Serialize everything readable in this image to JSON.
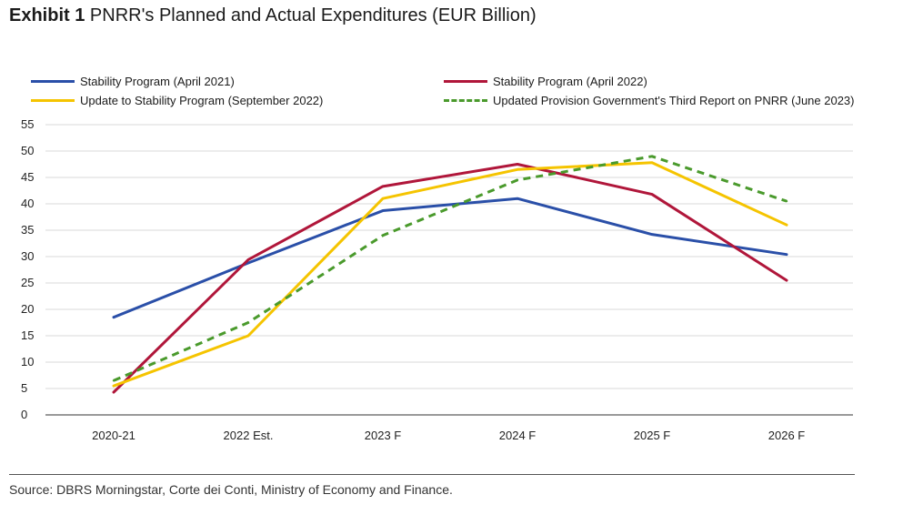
{
  "header": {
    "exhibit": "Exhibit 1",
    "title": "PNRR's Planned and Actual Expenditures (EUR Billion)"
  },
  "source": "Source: DBRS Morningstar, Corte dei Conti, Ministry of Economy and Finance.",
  "chart_data": {
    "type": "line",
    "title": "PNRR's Planned and Actual Expenditures (EUR Billion)",
    "xlabel": "",
    "ylabel": "",
    "categories": [
      "2020-21",
      "2022 Est.",
      "2023 F",
      "2024 F",
      "2025 F",
      "2026 F"
    ],
    "ylim": [
      0,
      55
    ],
    "yticks": [
      0,
      5,
      10,
      15,
      20,
      25,
      30,
      35,
      40,
      45,
      50,
      55
    ],
    "grid": true,
    "legend_position": "top",
    "series": [
      {
        "name": "Stability Program (April 2021)",
        "color": "#2a4fa8",
        "dash": false,
        "values": [
          18.5,
          28.8,
          38.7,
          41.0,
          34.2,
          30.4
        ]
      },
      {
        "name": "Stability Program (April 2022)",
        "color": "#b0163a",
        "dash": false,
        "values": [
          4.3,
          29.4,
          43.3,
          47.5,
          41.8,
          25.5
        ]
      },
      {
        "name": "Update to Stability Program (September 2022)",
        "color": "#f5c400",
        "dash": false,
        "values": [
          5.5,
          15.0,
          41.0,
          46.5,
          47.8,
          36.0
        ]
      },
      {
        "name": "Updated Provision Government's Third Report on PNRR (June 2023)",
        "color": "#4a9a2c",
        "dash": true,
        "values": [
          6.5,
          17.5,
          34.0,
          44.5,
          49.0,
          40.5
        ]
      }
    ]
  }
}
